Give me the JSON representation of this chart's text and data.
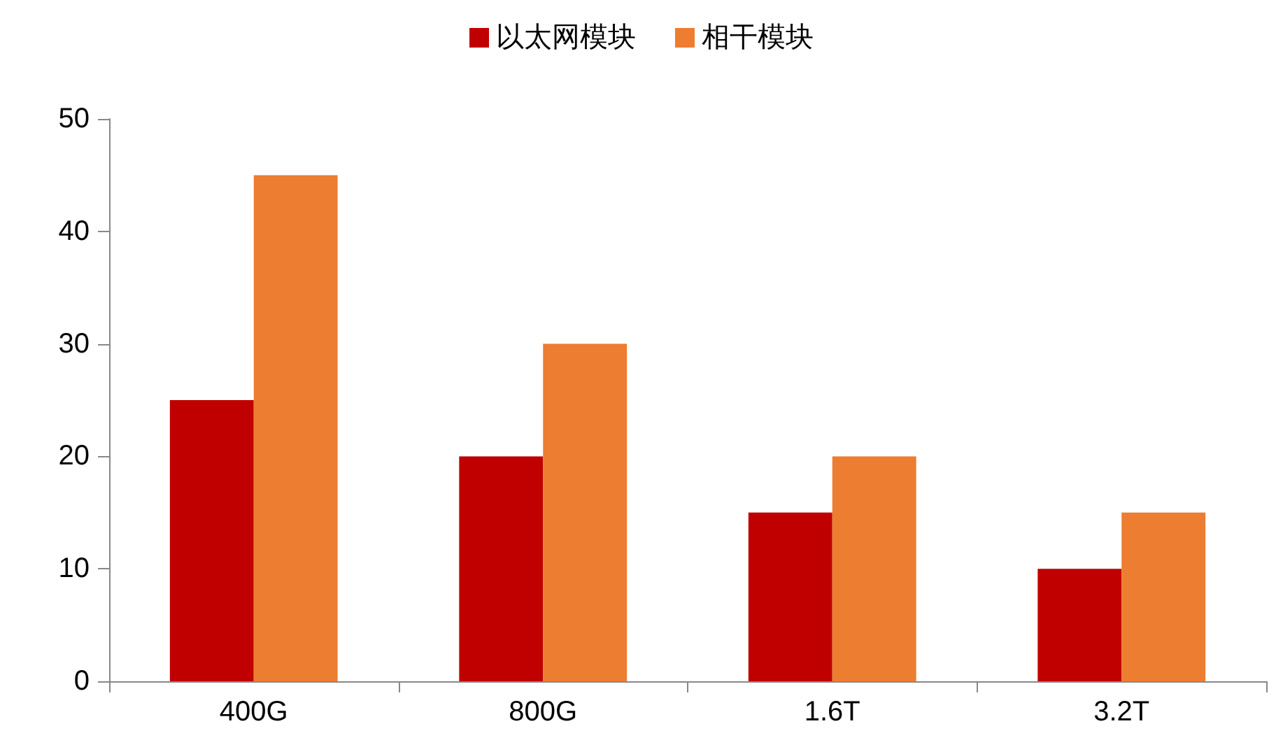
{
  "chart_data": {
    "type": "bar",
    "categories": [
      "400G",
      "800G",
      "1.6T",
      "3.2T"
    ],
    "series": [
      {
        "name": "以太网模块",
        "color": "#c00000",
        "values": [
          25,
          20,
          15,
          10
        ]
      },
      {
        "name": "相干模块",
        "color": "#ed7d31",
        "values": [
          45,
          30,
          20,
          15
        ]
      }
    ],
    "ylim": [
      0,
      50
    ],
    "yticks": [
      0,
      10,
      20,
      30,
      40,
      50
    ],
    "grid": false,
    "legend": "top"
  }
}
